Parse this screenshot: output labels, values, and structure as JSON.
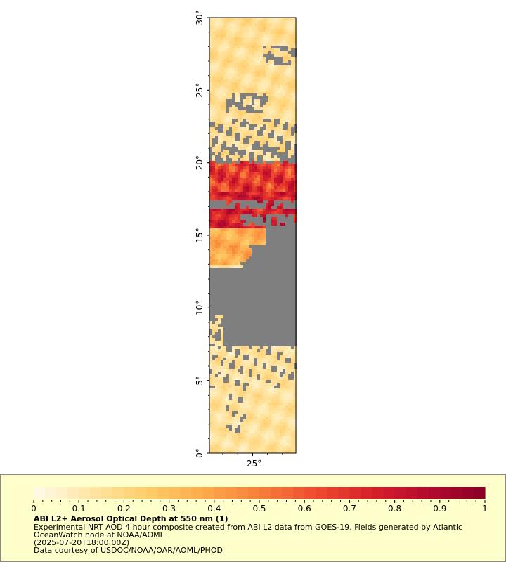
{
  "map": {
    "y_ticks": [
      "0°",
      "5°",
      "10°",
      "15°",
      "20°",
      "25°",
      "30°"
    ],
    "y_values": [
      0,
      5,
      10,
      15,
      20,
      25,
      30
    ],
    "x_ticks": [
      "-25°"
    ],
    "x_values": [
      -25
    ],
    "lon_range": [
      -27.9,
      -22.1
    ],
    "lat_range": [
      0,
      30
    ],
    "no_data_color": "#7f7f7f",
    "frame_color": "#000000"
  },
  "legend": {
    "ticks": [
      "0",
      "0.1",
      "0.2",
      "0.3",
      "0.4",
      "0.5",
      "0.6",
      "0.7",
      "0.8",
      "0.9",
      "1"
    ],
    "range": [
      0,
      1
    ],
    "title": "ABI L2+ Aerosol Optical Depth at 550 nm (1)",
    "desc_line1": "Experimental NRT AOD 4 hour composite created from ABI L2 data from GOES-19. Fields generated by Atlantic",
    "desc_line2": "OceanWatch node at NOAA/AOML",
    "time": "(2025-07-20T18:00:00Z)",
    "credit": "Data courtesy of USDOC/NOAA/OAR/AOML/PHOD",
    "colors": [
      "#fffbeb",
      "#ffe6a5",
      "#ffcd6b",
      "#fdaa4b",
      "#f7803a",
      "#ef4b30",
      "#d7202a",
      "#b40a2e",
      "#8a0026"
    ]
  }
}
